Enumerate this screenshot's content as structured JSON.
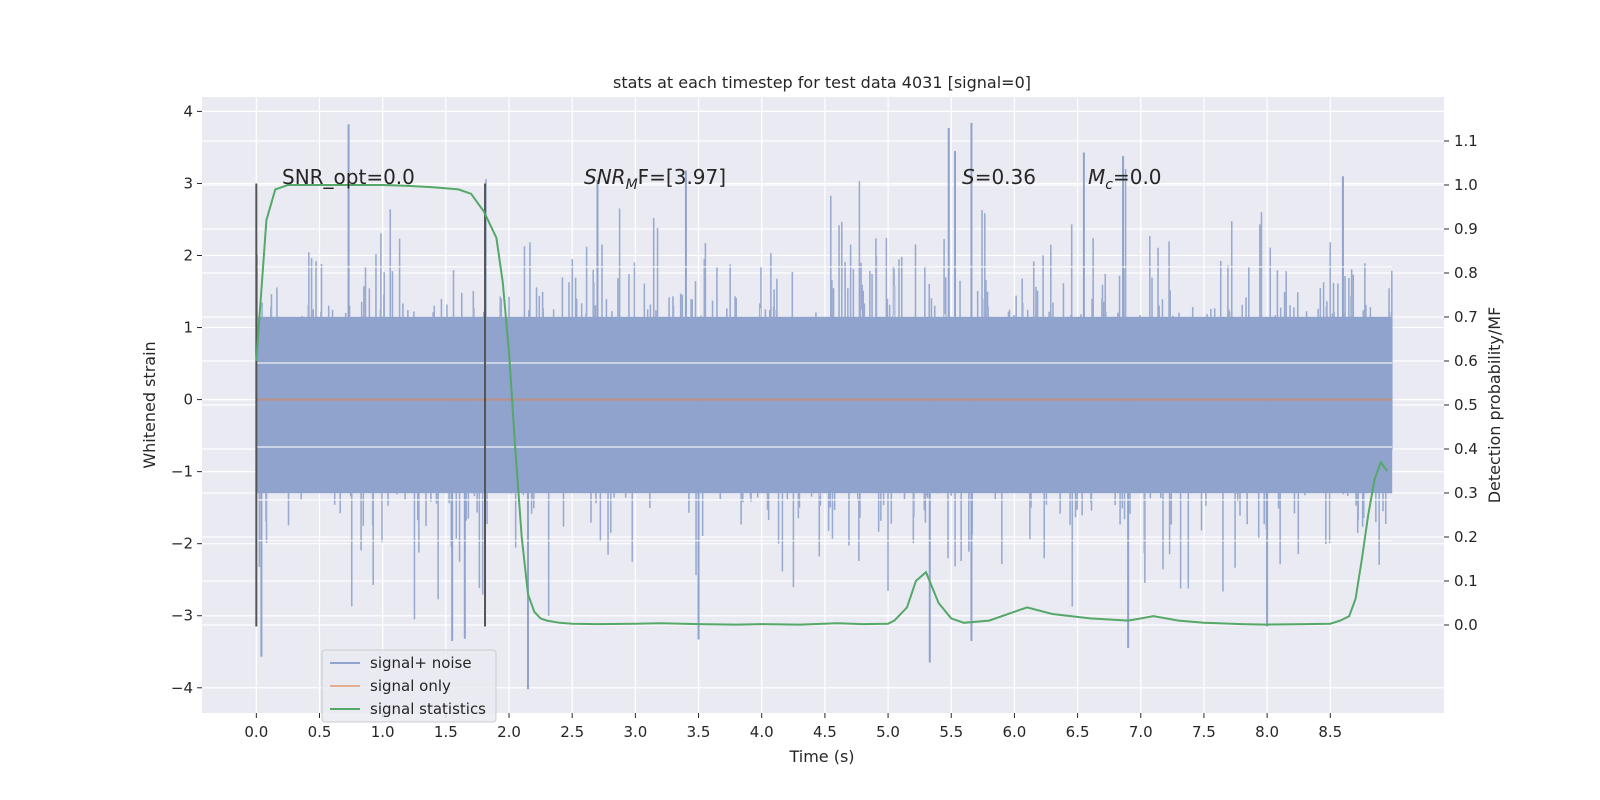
{
  "chart_data": {
    "type": "line",
    "title": "stats at each timestep for test data 4031 [signal=0]",
    "xlabel": "Time (s)",
    "ylabel": "Whitened strain",
    "y2label": "Detection probability/MF",
    "xlim": [
      -0.43,
      9.4
    ],
    "ylim": [
      -4.35,
      4.2
    ],
    "y2lim": [
      -0.2,
      1.2
    ],
    "xticks": [
      0.0,
      0.5,
      1.0,
      1.5,
      2.0,
      2.5,
      3.0,
      3.5,
      4.0,
      4.5,
      5.0,
      5.5,
      6.0,
      6.5,
      7.0,
      7.5,
      8.0,
      8.5
    ],
    "xtick_labels": [
      "0.0",
      "0.5",
      "1.0",
      "1.5",
      "2.0",
      "2.5",
      "3.0",
      "3.5",
      "4.0",
      "4.5",
      "5.0",
      "5.5",
      "6.0",
      "6.5",
      "7.0",
      "7.5",
      "8.0",
      "8.5"
    ],
    "yticks": [
      4,
      3,
      2,
      1,
      0,
      -1,
      -2,
      -3,
      -4
    ],
    "ytick_labels": [
      "4",
      "3",
      "2",
      "1",
      "0",
      "−1",
      "−2",
      "−3",
      "−4"
    ],
    "y2ticks": [
      1.1,
      1.0,
      0.9,
      0.8,
      0.7,
      0.6,
      0.5,
      0.4,
      0.3,
      0.2,
      0.1,
      0.0
    ],
    "y2tick_labels": [
      "1.1",
      "1.0",
      "0.9",
      "0.8",
      "0.7",
      "0.6",
      "0.5",
      "0.4",
      "0.3",
      "0.2",
      "0.1",
      "0.0"
    ],
    "vertical_markers": [
      {
        "x": 0.0,
        "y_range": [
          -3.15,
          3.0
        ]
      },
      {
        "x": 1.81,
        "y_range": [
          -3.15,
          3.0
        ]
      }
    ],
    "annotations": {
      "snr_opt": "SNR_opt=0.0",
      "snr_mf_main": "SNR",
      "snr_mf_sub": "M",
      "snr_mf_rest": "F=[3.97]",
      "s_main": "S",
      "s_rest": "=0.36",
      "mc_main": "M",
      "mc_sub": "c",
      "mc_rest": "=0.0"
    },
    "series": [
      {
        "name": "signal+ noise",
        "color": "#8fa3cc",
        "axis": "left",
        "x_range": [
          0.0,
          8.99
        ],
        "noise_band": [
          -1.3,
          1.15
        ],
        "peaks": [
          {
            "x": 0.73,
            "y": 3.82
          },
          {
            "x": 5.48,
            "y": 3.77
          },
          {
            "x": 5.66,
            "y": 3.84
          },
          {
            "x": 5.53,
            "y": 3.45
          },
          {
            "x": 6.55,
            "y": 3.43
          },
          {
            "x": 6.86,
            "y": 3.38
          },
          {
            "x": 3.4,
            "y": 3.18
          },
          {
            "x": 2.7,
            "y": 3.05
          },
          {
            "x": 8.6,
            "y": 3.1
          }
        ],
        "troughs": [
          {
            "x": 0.04,
            "y": -3.57
          },
          {
            "x": 2.15,
            "y": -4.02
          },
          {
            "x": 5.33,
            "y": -3.65
          },
          {
            "x": 1.55,
            "y": -3.35
          },
          {
            "x": 1.65,
            "y": -3.32
          },
          {
            "x": 3.5,
            "y": -3.33
          },
          {
            "x": 6.9,
            "y": -3.45
          },
          {
            "x": 8.0,
            "y": -3.15
          },
          {
            "x": 5.66,
            "y": -3.35
          }
        ]
      },
      {
        "name": "signal only",
        "color": "#dd8452",
        "axis": "left",
        "x": [
          0.0,
          8.99
        ],
        "y": [
          0.0,
          0.0
        ]
      },
      {
        "name": "signal statistics",
        "color": "#55a868",
        "axis": "right",
        "x": [
          0.0,
          0.08,
          0.15,
          0.25,
          0.4,
          0.6,
          0.8,
          1.0,
          1.2,
          1.4,
          1.6,
          1.7,
          1.8,
          1.9,
          1.95,
          2.0,
          2.05,
          2.1,
          2.15,
          2.2,
          2.25,
          2.3,
          2.4,
          2.5,
          2.7,
          3.0,
          3.2,
          3.5,
          3.8,
          4.0,
          4.3,
          4.6,
          4.8,
          5.0,
          5.05,
          5.15,
          5.22,
          5.3,
          5.4,
          5.5,
          5.6,
          5.8,
          6.0,
          6.1,
          6.3,
          6.6,
          6.9,
          7.1,
          7.3,
          7.5,
          7.8,
          8.0,
          8.3,
          8.5,
          8.58,
          8.65,
          8.7,
          8.75,
          8.8,
          8.85,
          8.9,
          8.95
        ],
        "y": [
          0.6,
          0.92,
          0.99,
          1.0,
          1.0,
          1.0,
          1.0,
          1.0,
          0.998,
          0.995,
          0.99,
          0.98,
          0.94,
          0.88,
          0.78,
          0.62,
          0.4,
          0.2,
          0.07,
          0.03,
          0.015,
          0.01,
          0.005,
          0.003,
          0.002,
          0.003,
          0.004,
          0.002,
          0.001,
          0.002,
          0.001,
          0.004,
          0.002,
          0.003,
          0.01,
          0.04,
          0.1,
          0.12,
          0.05,
          0.015,
          0.005,
          0.01,
          0.03,
          0.04,
          0.025,
          0.015,
          0.01,
          0.02,
          0.01,
          0.005,
          0.002,
          0.001,
          0.002,
          0.003,
          0.01,
          0.02,
          0.06,
          0.15,
          0.25,
          0.33,
          0.37,
          0.35
        ]
      }
    ],
    "legend": {
      "placement": "lower-left",
      "entries": [
        "signal+ noise",
        "signal only",
        "signal statistics"
      ]
    }
  }
}
